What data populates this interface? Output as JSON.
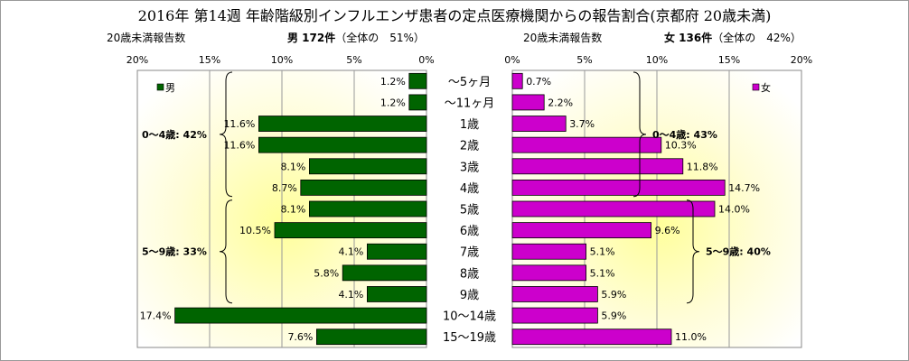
{
  "title": "2016年 第14週 年齢階級別インフルエンザ患者の定点医療機関からの報告割合(京都府 20歳未満)",
  "header": {
    "male_axis_label": "20歳未満報告数",
    "male_count": "男 172件",
    "male_share": "（全体の　51%）",
    "female_axis_label": "20歳未満報告数",
    "female_count": "女 136件",
    "female_share": "（全体の　42%）"
  },
  "chart_data": {
    "type": "bar",
    "orientation": "horizontal-population-pyramid",
    "categories": [
      "～5ヶ月",
      "～11ヶ月",
      "1歳",
      "2歳",
      "3歳",
      "4歳",
      "5歳",
      "6歳",
      "7歳",
      "8歳",
      "9歳",
      "10～14歳",
      "15～19歳"
    ],
    "series": [
      {
        "name": "男",
        "color": "#006400",
        "values": [
          1.2,
          1.2,
          11.6,
          11.6,
          8.1,
          8.7,
          8.1,
          10.5,
          4.1,
          5.8,
          4.1,
          17.4,
          7.6
        ],
        "value_labels": [
          "1.2%",
          "1.2%",
          "11.6%",
          "11.6%",
          "8.1%",
          "8.7%",
          "8.1%",
          "10.5%",
          "4.1%",
          "5.8%",
          "4.1%",
          "17.4%",
          "7.6%"
        ]
      },
      {
        "name": "女",
        "color": "#cc00cc",
        "values": [
          0.7,
          2.2,
          3.7,
          10.3,
          11.8,
          14.7,
          14.0,
          9.6,
          5.1,
          5.1,
          5.9,
          5.9,
          11.0
        ],
        "value_labels": [
          "0.7%",
          "2.2%",
          "3.7%",
          "10.3%",
          "11.8%",
          "14.7%",
          "14.0%",
          "9.6%",
          "5.1%",
          "5.1%",
          "5.9%",
          "5.9%",
          "11.0%"
        ]
      }
    ],
    "xlim": [
      0,
      20
    ],
    "male_ticks": [
      "20%",
      "15%",
      "10%",
      "5%",
      "0%"
    ],
    "female_ticks": [
      "0%",
      "5%",
      "10%",
      "15%",
      "20%"
    ],
    "tick_values_male": [
      20,
      15,
      10,
      5,
      0
    ],
    "tick_values_female": [
      0,
      5,
      10,
      15,
      20
    ],
    "annotations": {
      "male_0_4": {
        "label": "0～4歳: 42%",
        "from": 0,
        "to": 5
      },
      "male_5_9": {
        "label": "5～9歳: 33%",
        "from": 6,
        "to": 10
      },
      "female_0_4": {
        "label": "0～4歳: 43%",
        "from": 0,
        "to": 5
      },
      "female_5_9": {
        "label": "5～9歳: 40%",
        "from": 6,
        "to": 10
      }
    },
    "grid": true,
    "legend": {
      "male": "男",
      "female": "女"
    }
  }
}
